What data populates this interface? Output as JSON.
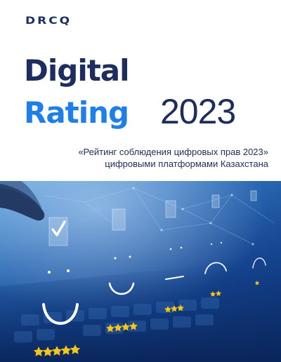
{
  "brand": {
    "logo_text": "DRCQ"
  },
  "title": {
    "line1": "Digital",
    "line2": "Rating",
    "year": "2023"
  },
  "subtitle": {
    "line1": "«Рейтинг соблюдения цифровых прав 2023»",
    "line2": "цифровыми платформами Казахстана"
  },
  "hero": {
    "description_icons": [
      "keyboard-graphic",
      "hand-graphic",
      "checkmark-icon",
      "smiley-face-icon",
      "star-icon"
    ],
    "ratings_stars": [
      5,
      4,
      3,
      2,
      1
    ],
    "colors": {
      "star": "#f5c518",
      "face": "#ffffff",
      "accent": "#1f7ee8",
      "navy": "#1c2d5e"
    }
  }
}
